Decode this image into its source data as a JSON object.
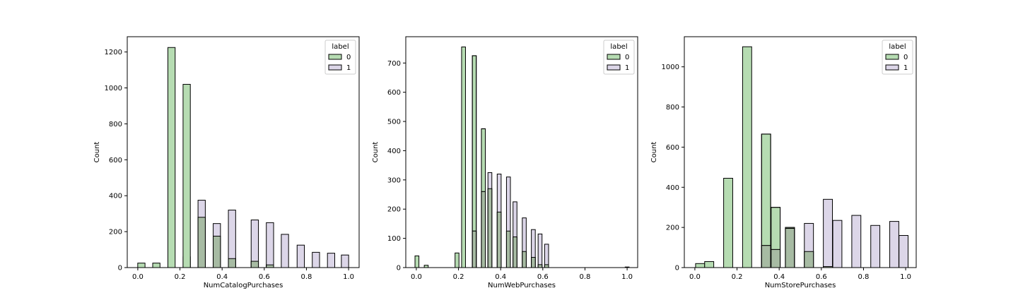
{
  "colors": {
    "label_0": "#b6dcb2",
    "label_1": "#dcd6e8",
    "overlap": "#a7bba3",
    "edge": "#000000",
    "axes": "#000000"
  },
  "chart_data": [
    {
      "type": "bar",
      "subtype": "overlapping-histogram",
      "title": "",
      "xlabel": "NumCatalogPurchases",
      "ylabel": "Count",
      "xlim": [
        -0.05,
        1.05
      ],
      "ylim": [
        0,
        1285
      ],
      "xticks": [
        "0.0",
        "0.2",
        "0.4",
        "0.6",
        "0.8",
        "1.0"
      ],
      "yticks": [
        "0",
        "200",
        "400",
        "600",
        "800",
        "1000",
        "1200"
      ],
      "grid": false,
      "legend": {
        "title": "label",
        "entries": [
          "0",
          "1"
        ],
        "position": "top-right"
      },
      "bin_width": 0.0345,
      "series": [
        {
          "name": "0",
          "x": [
            0.017,
            0.088,
            0.16,
            0.232,
            0.303,
            0.375,
            0.447,
            0.555,
            0.627
          ],
          "values": [
            25,
            25,
            1225,
            60,
            280,
            175,
            50,
            35,
            15
          ]
        },
        {
          "name": "1",
          "x": [
            0.232,
            0.303,
            0.375,
            0.447,
            0.555,
            0.627,
            0.698,
            0.773,
            0.845,
            0.917,
            0.983
          ],
          "values": [
            0,
            375,
            245,
            320,
            265,
            250,
            185,
            125,
            85,
            80,
            70
          ]
        }
      ],
      "series_extra": [
        {
          "name": "0",
          "x": [
            0.232
          ],
          "values": [
            1020
          ]
        }
      ]
    },
    {
      "type": "bar",
      "subtype": "overlapping-histogram",
      "title": "",
      "xlabel": "NumWebPurchases",
      "ylabel": "Count",
      "xlim": [
        -0.05,
        1.05
      ],
      "ylim": [
        0,
        790
      ],
      "xticks": [
        "0.0",
        "0.2",
        "0.4",
        "0.6",
        "0.8",
        "1.0"
      ],
      "yticks": [
        "0",
        "100",
        "200",
        "300",
        "400",
        "500",
        "600",
        "700"
      ],
      "grid": false,
      "legend": {
        "title": "label",
        "entries": [
          "0",
          "1"
        ],
        "position": "top-right"
      },
      "bin_width": 0.0186,
      "series": [
        {
          "name": "0",
          "x": [
            0.003,
            0.047,
            0.193,
            0.224,
            0.275,
            0.318,
            0.349,
            0.393,
            0.437,
            0.468,
            0.512,
            0.555,
            0.587,
            0.618,
            1.0
          ],
          "values": [
            40,
            8,
            50,
            755,
            725,
            475,
            270,
            190,
            125,
            105,
            55,
            35,
            10,
            10,
            2
          ]
        },
        {
          "name": "1",
          "x": [
            0.224,
            0.275,
            0.318,
            0.349,
            0.393,
            0.437,
            0.468,
            0.512,
            0.555,
            0.587,
            0.618
          ],
          "values": [
            0,
            125,
            260,
            325,
            320,
            310,
            225,
            170,
            130,
            115,
            80
          ]
        }
      ]
    },
    {
      "type": "bar",
      "subtype": "overlapping-histogram",
      "title": "",
      "xlabel": "NumStorePurchases",
      "ylabel": "Count",
      "xlim": [
        -0.05,
        1.05
      ],
      "ylim": [
        0,
        1150
      ],
      "xticks": [
        "0.0",
        "0.2",
        "0.4",
        "0.6",
        "0.8",
        "1.0"
      ],
      "yticks": [
        "0",
        "200",
        "400",
        "600",
        "800",
        "1000"
      ],
      "grid": false,
      "legend": {
        "title": "label",
        "entries": [
          "0",
          "1"
        ],
        "position": "top-right"
      },
      "bin_width": 0.0431,
      "series": [
        {
          "name": "0",
          "x": [
            0.025,
            0.068,
            0.158,
            0.248,
            0.338,
            0.383,
            0.451,
            0.541,
            0.631
          ],
          "values": [
            20,
            30,
            445,
            1100,
            665,
            300,
            200,
            80,
            5
          ]
        },
        {
          "name": "1",
          "x": [
            0.338,
            0.383,
            0.451,
            0.541,
            0.631,
            0.676,
            0.766,
            0.856,
            0.946,
            0.99
          ],
          "values": [
            110,
            90,
            195,
            220,
            340,
            235,
            260,
            210,
            230,
            160
          ]
        }
      ]
    }
  ]
}
